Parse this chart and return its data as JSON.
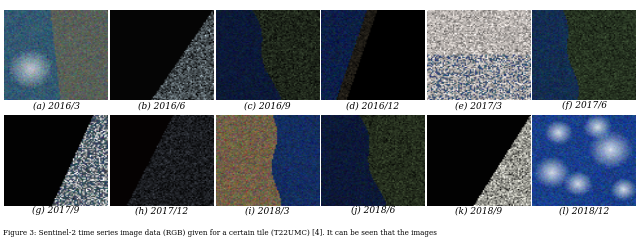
{
  "nrows": 2,
  "ncols": 6,
  "captions_row1": [
    "(a) 2016/3",
    "(b) 2016/6",
    "(c) 2016/9",
    "(d) 2016/12",
    "(e) 2017/3",
    "(f) 2017/6"
  ],
  "captions_row2": [
    "(g) 2017/9",
    "(h) 2017/12",
    "(i) 2018/3",
    "(j) 2018/6",
    "(k) 2018/9",
    "(l) 2018/12"
  ],
  "caption_fontsize": 6.5,
  "figure_caption": "Figure 3: Sentinel-2 time series image data (RGB) given for a certain tile (T22UMC) [4]. It can be seen that the images",
  "bg_color": "#ffffff"
}
